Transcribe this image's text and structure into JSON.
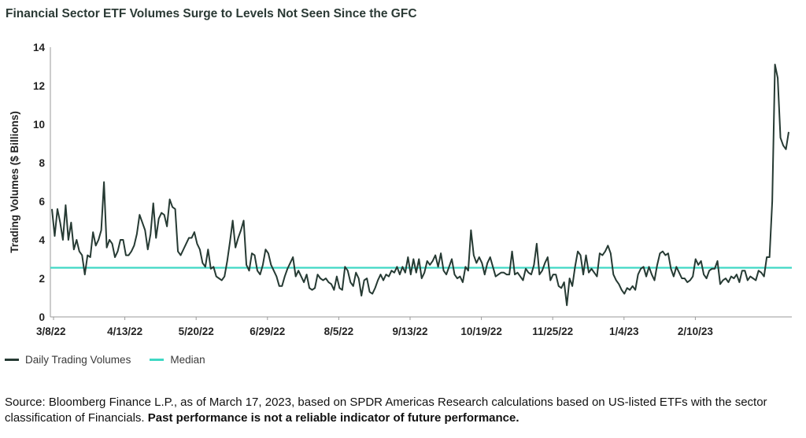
{
  "title": "Financial Sector ETF Volumes Surge to Levels Not Seen Since the GFC",
  "colors": {
    "series": "#263a33",
    "median": "#3fd8c4",
    "axis": "#9a9a9a"
  },
  "legend": {
    "series_label": "Daily Trading Volumes",
    "median_label": "Median"
  },
  "source": {
    "text": "Source: Bloomberg Finance L.P., as of March 17, 2023, based on SPDR Americas Research calculations based on US-listed ETFs with the sector classification of Financials.",
    "bold": "Past performance is not a reliable indicator of future performance."
  },
  "chart_data": {
    "type": "line",
    "ylabel": "Trading Volumes ($ Billions)",
    "xlabel": "",
    "ylim": [
      0,
      14
    ],
    "yticks": [
      0,
      2,
      4,
      6,
      8,
      10,
      12,
      14
    ],
    "x_tick_labels": [
      "3/8/22",
      "4/13/22",
      "5/20/22",
      "6/29/22",
      "8/5/22",
      "9/13/22",
      "10/19/22",
      "11/25/22",
      "1/4/23",
      "2/10/23"
    ],
    "median": 2.55,
    "series": [
      {
        "name": "Daily Trading Volumes",
        "values": [
          5.6,
          4.2,
          5.6,
          4.9,
          4.0,
          5.8,
          4.0,
          4.9,
          3.5,
          4.0,
          3.4,
          3.2,
          2.2,
          3.2,
          3.1,
          4.4,
          3.7,
          4.0,
          4.5,
          7.0,
          3.6,
          4.0,
          3.8,
          3.1,
          3.4,
          4.0,
          4.0,
          3.2,
          3.2,
          3.4,
          3.7,
          4.3,
          5.3,
          4.9,
          4.5,
          3.5,
          4.3,
          5.9,
          4.1,
          5.1,
          5.4,
          5.3,
          4.7,
          6.1,
          5.7,
          5.6,
          3.4,
          3.2,
          3.5,
          3.8,
          4.1,
          4.1,
          4.4,
          3.8,
          3.5,
          2.8,
          2.6,
          3.5,
          2.5,
          2.6,
          2.1,
          2.0,
          1.9,
          2.1,
          2.9,
          3.9,
          5.0,
          3.6,
          4.1,
          4.5,
          5.0,
          2.7,
          2.4,
          3.3,
          3.2,
          2.4,
          2.2,
          2.7,
          3.5,
          3.3,
          2.7,
          2.4,
          2.1,
          1.6,
          1.6,
          2.1,
          2.5,
          2.8,
          3.1,
          2.1,
          2.4,
          2.1,
          1.8,
          2.2,
          1.5,
          1.4,
          1.5,
          2.2,
          2.0,
          1.9,
          2.0,
          1.8,
          1.7,
          1.4,
          2.1,
          1.5,
          1.4,
          2.6,
          2.4,
          1.8,
          1.6,
          2.3,
          2.0,
          1.1,
          1.9,
          2.0,
          1.3,
          1.2,
          1.5,
          1.9,
          2.2,
          1.9,
          2.2,
          2.1,
          2.4,
          2.3,
          2.6,
          2.2,
          2.6,
          2.3,
          3.1,
          2.2,
          3.0,
          2.3,
          3.0,
          2.0,
          2.3,
          2.9,
          2.7,
          2.9,
          3.2,
          2.6,
          3.3,
          2.4,
          2.2,
          2.6,
          3.0,
          2.2,
          2.0,
          2.1,
          1.8,
          2.6,
          2.4,
          4.5,
          3.2,
          2.8,
          3.1,
          2.8,
          2.2,
          2.8,
          3.1,
          2.6,
          2.1,
          2.2,
          2.3,
          2.3,
          2.2,
          2.2,
          3.4,
          2.2,
          2.3,
          2.1,
          1.9,
          2.5,
          2.3,
          2.2,
          2.7,
          3.8,
          2.2,
          2.4,
          2.8,
          3.1,
          1.9,
          2.2,
          2.2,
          1.6,
          1.5,
          1.8,
          0.6,
          2.0,
          1.6,
          2.6,
          3.4,
          3.2,
          2.2,
          3.2,
          2.3,
          2.5,
          2.3,
          2.1,
          3.3,
          3.2,
          3.4,
          3.7,
          3.3,
          2.2,
          1.9,
          1.7,
          1.4,
          1.2,
          1.5,
          1.4,
          1.6,
          1.4,
          2.2,
          2.5,
          2.6,
          2.1,
          2.6,
          2.2,
          1.9,
          2.7,
          3.3,
          3.4,
          3.2,
          3.3,
          2.5,
          2.1,
          2.6,
          2.3,
          2.0,
          2.0,
          1.8,
          1.9,
          2.1,
          3.0,
          2.7,
          2.9,
          2.2,
          2.0,
          2.4,
          2.5,
          2.5,
          2.9,
          1.7,
          1.9,
          2.0,
          1.8,
          2.1,
          2.0,
          2.2,
          1.8,
          2.4,
          2.4,
          1.9,
          2.1,
          2.0,
          1.9,
          2.4,
          2.3,
          2.1,
          3.1,
          3.1,
          6.0,
          13.1,
          12.4,
          9.3,
          8.9,
          8.7,
          9.6
        ]
      }
    ]
  }
}
